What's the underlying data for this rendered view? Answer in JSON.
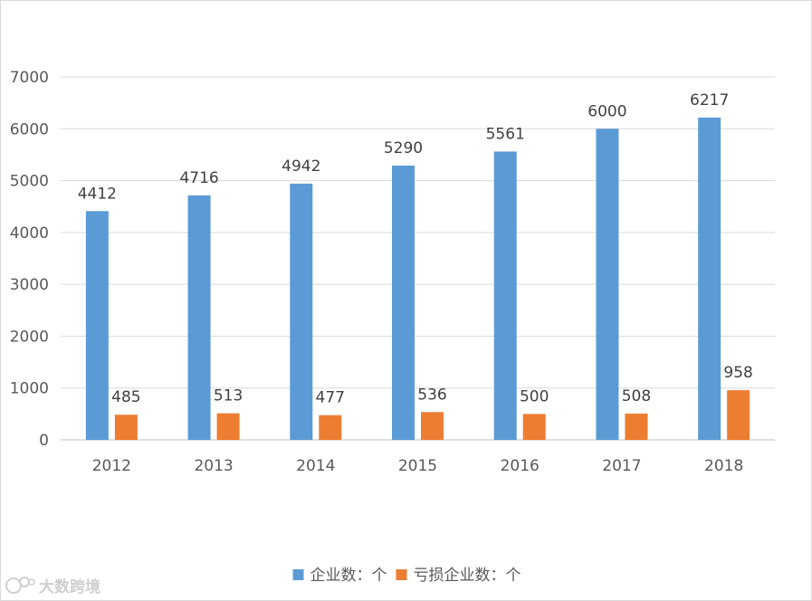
{
  "chart_data": {
    "type": "bar",
    "categories": [
      "2012",
      "2013",
      "2014",
      "2015",
      "2016",
      "2017",
      "2018"
    ],
    "series": [
      {
        "name": "企业数：个",
        "color": "#5b9bd5",
        "values": [
          4412,
          4716,
          4942,
          5290,
          5561,
          6000,
          6217
        ]
      },
      {
        "name": "亏损企业数：个",
        "color": "#ed7d31",
        "values": [
          485,
          513,
          477,
          536,
          500,
          508,
          958
        ]
      }
    ],
    "ylim": [
      0,
      7000
    ],
    "yticks": [
      "0",
      "1000",
      "2000",
      "3000",
      "4000",
      "5000",
      "6000",
      "7000"
    ],
    "grid": true,
    "legend_position": "bottom",
    "data_labels": true
  },
  "watermark": {
    "text": "大数跨境"
  }
}
